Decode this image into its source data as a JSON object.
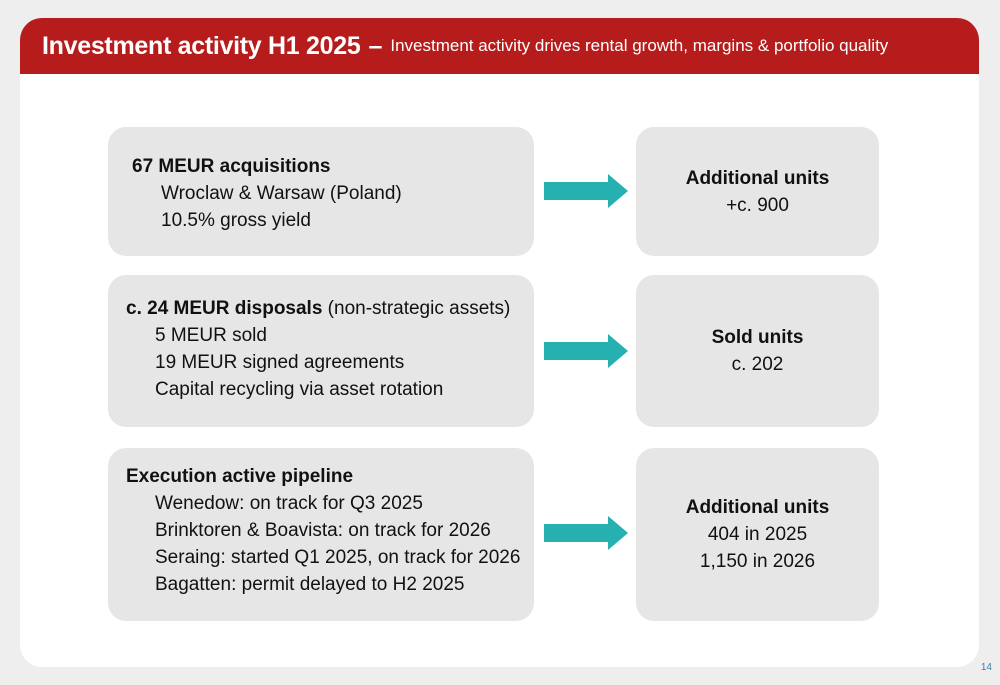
{
  "header": {
    "title": "Investment activity H1 2025",
    "separator": "–",
    "subtitle": "Investment activity drives rental growth, margins & portfolio quality"
  },
  "rows": [
    {
      "left": {
        "head_bold": "67 MEUR acquisitions",
        "head_rest": "",
        "lines": [
          "Wroclaw & Warsaw (Poland)",
          "10.5% gross yield"
        ]
      },
      "right": {
        "title": "Additional units",
        "lines": [
          "+c. 900"
        ]
      }
    },
    {
      "left": {
        "head_bold": "c. 24 MEUR disposals",
        "head_rest": " (non-strategic assets)",
        "lines": [
          "5 MEUR sold",
          "19 MEUR signed agreements",
          "Capital recycling via asset rotation"
        ]
      },
      "right": {
        "title": "Sold units",
        "lines": [
          "c. 202"
        ]
      }
    },
    {
      "left": {
        "head_bold": "Execution active pipeline",
        "head_rest": "",
        "lines": [
          "Wenedow: on track for Q3 2025",
          "Brinktoren & Boavista: on track for 2026",
          "Seraing: started Q1 2025, on track for 2026",
          "Bagatten: permit delayed to H2 2025"
        ]
      },
      "right": {
        "title": "Additional units",
        "lines": [
          "404 in 2025",
          "1,150 in 2026"
        ]
      }
    }
  ],
  "page_number": "14",
  "colors": {
    "header_bg": "#b71c1c",
    "arrow": "#26b0b0",
    "box_bg": "#e6e6e6"
  }
}
